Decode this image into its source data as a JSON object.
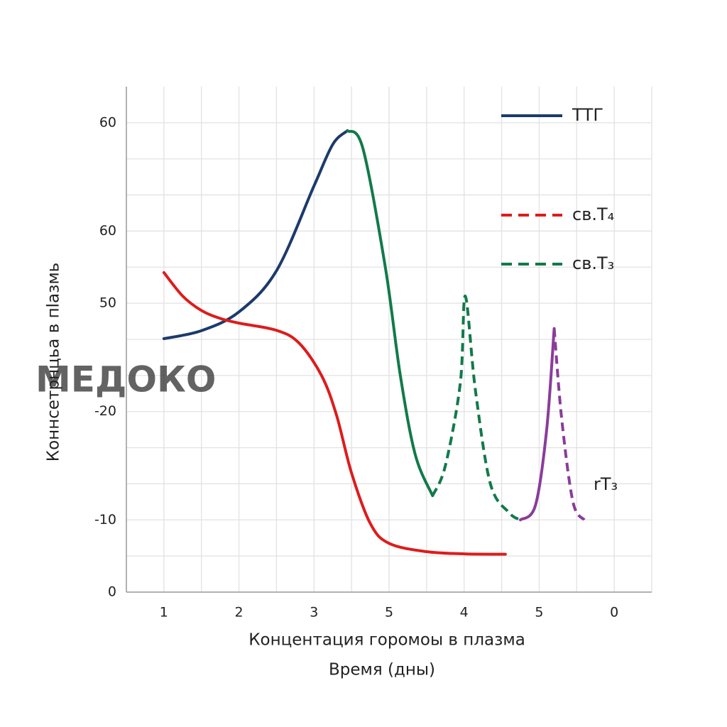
{
  "chart_data": {
    "type": "line",
    "watermark": "МЕДОКО",
    "x_label": "Концентация горомоы в плазма",
    "x_label_2": "Время (дны)",
    "y_label": "Коннсетрнцьа в пlaзмь",
    "xlim": [
      -1,
      13
    ],
    "ylim": [
      0,
      14
    ],
    "xticks": [
      {
        "value": 0,
        "label": "1"
      },
      {
        "value": 2,
        "label": "2"
      },
      {
        "value": 4,
        "label": "3"
      },
      {
        "value": 6,
        "label": "5"
      },
      {
        "value": 8,
        "label": "4"
      },
      {
        "value": 10,
        "label": "5"
      },
      {
        "value": 12,
        "label": "0"
      }
    ],
    "yticks": [
      0,
      {
        "value": 2,
        "label": "-10"
      },
      {
        "value": 5,
        "label": "-20"
      },
      {
        "value": 8,
        "label": "50"
      },
      {
        "value": 10,
        "label": "60"
      },
      {
        "value": 13,
        "label": "60"
      }
    ],
    "xgrid": [
      0,
      1,
      2,
      3,
      4,
      5,
      6,
      7,
      8,
      9,
      10,
      11,
      12,
      13
    ],
    "ygrid": [
      1,
      2,
      3,
      4,
      5,
      6,
      7,
      8,
      9,
      10,
      11,
      12,
      13
    ],
    "series": [
      {
        "name": "ТТГ",
        "color": "#1c3a6b",
        "legend": "solid",
        "x": [
          0,
          1,
          2,
          3,
          4,
          4.5,
          4.89
        ],
        "values": [
          7.02,
          7.24,
          7.76,
          8.9,
          11.25,
          12.4,
          12.78
        ]
      },
      {
        "name": "св.T₄",
        "color": "#dd1c1c",
        "legend": "dashed",
        "x": [
          0,
          0.5,
          1,
          1.5,
          2,
          3,
          3.6,
          4.2,
          4.6,
          5.0,
          5.5,
          6,
          7,
          8,
          9.1
        ],
        "values": [
          8.85,
          8.2,
          7.8,
          7.58,
          7.45,
          7.25,
          6.9,
          6.0,
          4.9,
          3.3,
          1.9,
          1.35,
          1.12,
          1.06,
          1.05
        ]
      },
      {
        "name": "св.T₃",
        "color": "#117a4a",
        "legend": "dashed",
        "dash_from": 7.16,
        "x": [
          4.89,
          5.3,
          5.9,
          6.3,
          6.7,
          7.16,
          7.5,
          7.9,
          8.03,
          8.3,
          8.7,
          9.2,
          9.5
        ],
        "values": [
          12.78,
          12.3,
          9.0,
          6.0,
          3.8,
          2.67,
          3.5,
          5.8,
          8.2,
          5.6,
          3.0,
          2.2,
          2.0
        ]
      },
      {
        "name": "rT₃",
        "color": "#8a3c9a",
        "legend": "none",
        "dash_from": 10.4,
        "x": [
          9.5,
          9.9,
          10.2,
          10.4,
          10.6,
          10.9,
          11.2
        ],
        "values": [
          2.0,
          2.4,
          4.5,
          7.3,
          4.8,
          2.5,
          2.0
        ]
      }
    ]
  }
}
